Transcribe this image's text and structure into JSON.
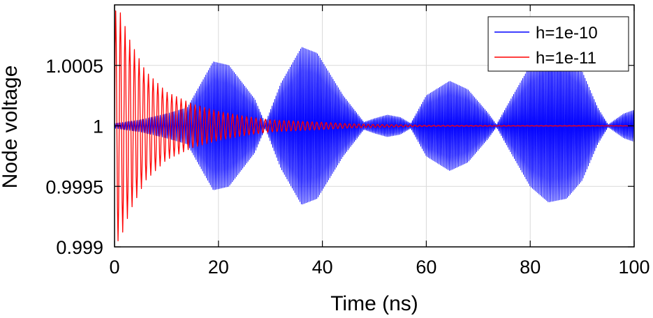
{
  "chart_data": {
    "type": "line",
    "xlabel": "Time (ns)",
    "ylabel": "Node voltage",
    "xlim": [
      0,
      100
    ],
    "ylim": [
      0.999,
      1.001
    ],
    "x_ticks": [
      0,
      20,
      40,
      60,
      80,
      100
    ],
    "y_ticks": [
      0.999,
      0.9995,
      1,
      1.0005
    ],
    "x_tick_labels": [
      "0",
      "20",
      "40",
      "60",
      "80",
      "100"
    ],
    "y_tick_labels": [
      "0.999",
      "0.9995",
      "1",
      "1.0005"
    ],
    "grid": true,
    "legend_position": "top-right",
    "series": [
      {
        "name": "h=1e-10",
        "color": "#0000ff",
        "oscillation_period_ns": 0.25,
        "center": 1,
        "envelope": {
          "t": [
            0,
            5,
            10,
            14,
            19,
            22,
            27,
            29,
            32,
            36,
            39,
            44,
            48,
            50,
            52.5,
            55,
            57,
            60,
            64.5,
            68,
            72,
            73.5,
            76,
            80,
            83.5,
            87,
            90,
            93,
            95,
            98,
            100
          ],
          "amplitude": [
            2e-05,
            5e-05,
            0.0001,
            0.00015,
            0.00053,
            0.0005,
            0.00022,
            2e-05,
            0.00035,
            0.00065,
            0.0006,
            0.00025,
            3e-05,
            6e-05,
            9e-05,
            7e-05,
            2e-05,
            0.00025,
            0.00037,
            0.0003,
            0.0001,
            1e-05,
            0.0002,
            0.0005,
            0.00063,
            0.0006,
            0.00045,
            0.00015,
            1e-05,
            0.0001,
            0.00013
          ]
        }
      },
      {
        "name": "h=1e-11",
        "color": "#ff0000",
        "oscillation_period_ns": 0.9,
        "center": 1,
        "envelope": {
          "t": [
            0,
            1,
            3,
            6,
            10,
            15,
            20,
            25,
            30,
            35,
            40,
            45,
            50,
            55,
            60,
            70,
            80,
            100
          ],
          "amplitude": [
            0.00095,
            0.00095,
            0.0007,
            0.00045,
            0.00028,
            0.00018,
            0.00012,
            8e-05,
            5e-05,
            4e-05,
            3e-05,
            1.8e-05,
            1.2e-05,
            8e-06,
            5e-06,
            3e-06,
            2e-06,
            1e-06
          ]
        }
      }
    ]
  }
}
